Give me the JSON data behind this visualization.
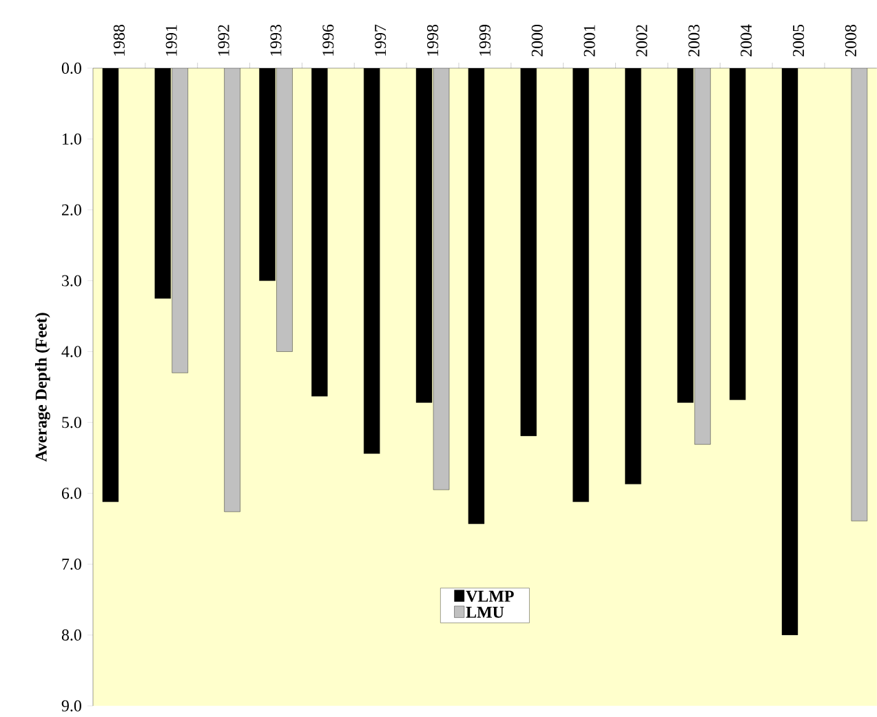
{
  "chart_data": {
    "type": "bar",
    "ylabel": "Average Depth (Feet)",
    "categories": [
      "1988",
      "1991",
      "1992",
      "1993",
      "1996",
      "1997",
      "1998",
      "1999",
      "2000",
      "2001",
      "2002",
      "2003",
      "2004",
      "2005",
      "2008"
    ],
    "series": [
      {
        "name": "VLMP",
        "color": "#000000",
        "values": [
          6.12,
          3.25,
          null,
          3.0,
          4.63,
          5.44,
          4.72,
          6.43,
          5.19,
          6.12,
          5.87,
          4.72,
          4.68,
          8.0,
          null
        ]
      },
      {
        "name": "LMU",
        "color": "#c0c0c0",
        "values": [
          null,
          4.3,
          6.26,
          4.0,
          null,
          null,
          5.95,
          null,
          null,
          null,
          null,
          5.31,
          null,
          null,
          6.39
        ]
      }
    ],
    "ylim": [
      9,
      0
    ],
    "yticks": [
      {
        "value": 0,
        "label": "0.0"
      },
      {
        "value": 1,
        "label": "1.0"
      },
      {
        "value": 2,
        "label": "2.0"
      },
      {
        "value": 3,
        "label": "3.0"
      },
      {
        "value": 4,
        "label": "4.0"
      },
      {
        "value": 5,
        "label": "5.0"
      },
      {
        "value": 6,
        "label": "6.0"
      },
      {
        "value": 7,
        "label": "7.0"
      },
      {
        "value": 8,
        "label": "8.0"
      },
      {
        "value": 9,
        "label": "9.0"
      }
    ],
    "legend": "bottom",
    "grid": false
  }
}
